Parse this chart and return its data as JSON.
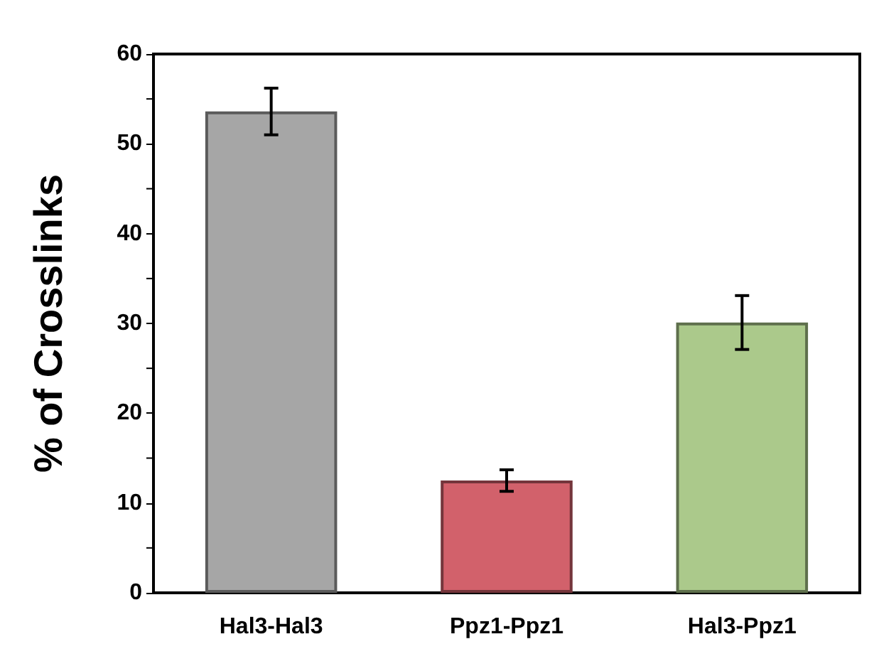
{
  "chart_data": {
    "type": "bar",
    "ylabel": "% of Crosslinks",
    "categories": [
      "Hal3-Hal3",
      "Ppz1-Ppz1",
      "Hal3-Ppz1"
    ],
    "values": [
      53.6,
      12.5,
      30.1
    ],
    "colors": [
      "#a6a6a6",
      "#d2616b",
      "#abc98b"
    ],
    "errors": [
      2.6,
      1.2,
      3.0
    ],
    "ylim": [
      0,
      60
    ],
    "yticks": [
      0,
      10,
      20,
      30,
      40,
      50,
      60
    ]
  }
}
